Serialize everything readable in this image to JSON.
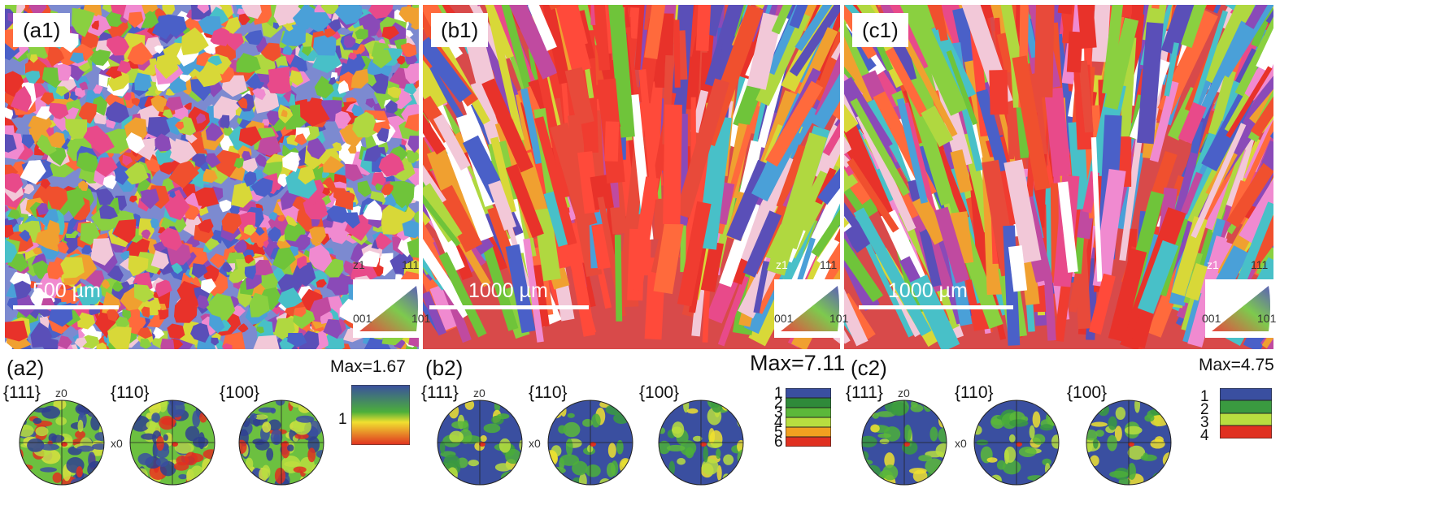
{
  "panels": [
    {
      "id": "a",
      "label": "(a1)",
      "scale": "500 µm",
      "ipf": {
        "top": "z1",
        "v001": "001",
        "v101": "101",
        "v111": "111"
      }
    },
    {
      "id": "b",
      "label": "(b1)",
      "scale": "1000 µm",
      "ipf": {
        "top": "z1",
        "v001": "001",
        "v101": "101",
        "v111": "111"
      }
    },
    {
      "id": "c",
      "label": "(c1)",
      "scale": "1000 µm",
      "ipf": {
        "top": "z1",
        "v001": "001",
        "v101": "101",
        "v111": "111"
      }
    }
  ],
  "pole_figures": [
    {
      "label": "(a2)",
      "families": [
        "{111}",
        "{110}",
        "{100}"
      ],
      "z_axis": "z0",
      "x_axis": "x0",
      "max": "Max=1.67",
      "colorbar_ticks": [
        "1"
      ]
    },
    {
      "label": "(b2)",
      "families": [
        "{111}",
        "{110}",
        "{100}"
      ],
      "z_axis": "z0",
      "x_axis": "x0",
      "max": "Max=7.11",
      "colorbar_ticks": [
        "1",
        "2",
        "3",
        "4",
        "5",
        "6"
      ]
    },
    {
      "label": "(c2)",
      "families": [
        "{111}",
        "{110}",
        "{100}"
      ],
      "z_axis": "z0",
      "x_axis": "x0",
      "max": "Max=4.75",
      "colorbar_ticks": [
        "1",
        "2",
        "3",
        "4"
      ]
    }
  ],
  "colors": {
    "ipf_red": "#e8322a",
    "ipf_green": "#6fc43a",
    "ipf_blue": "#4a4fb0",
    "pf_blue": "#3a4fa0",
    "pf_green": "#4caf3a",
    "pf_yellow": "#f0e030",
    "pf_red": "#e03020"
  }
}
